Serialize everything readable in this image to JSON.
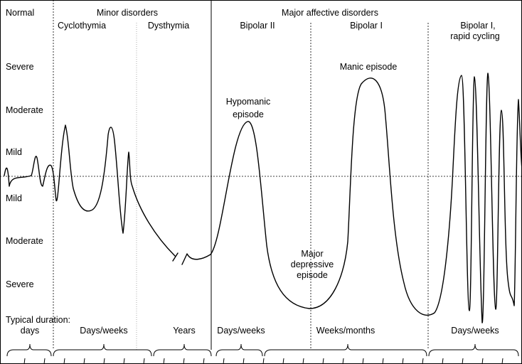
{
  "groups": {
    "normal": "Normal",
    "minor": "Minor disorders",
    "major": "Major affective disorders"
  },
  "subtypes": {
    "cyclothymia": "Cyclothymia",
    "dysthymia": "Dysthymia",
    "bipolar2": "Bipolar II",
    "bipolar1": "Bipolar I",
    "rapid_line1": "Bipolar I,",
    "rapid_line2": "rapid cycling"
  },
  "severity_levels": {
    "up_severe": "Severe",
    "up_moderate": "Moderate",
    "up_mild": "Mild",
    "down_mild": "Mild",
    "down_moderate": "Moderate",
    "down_severe": "Severe"
  },
  "episodes": {
    "hypomanic_line1": "Hypomanic",
    "hypomanic_line2": "episode",
    "manic": "Manic episode",
    "depressive_line1": "Major",
    "depressive_line2": "depressive",
    "depressive_line3": "episode"
  },
  "durations": {
    "heading": "Typical  duration:",
    "normal": "days",
    "cyclothymia": "Days/weeks",
    "dysthymia": "Years",
    "bipolar2": "Days/weeks",
    "bipolar1": "Weeks/months",
    "rapid": "Days/weeks"
  }
}
